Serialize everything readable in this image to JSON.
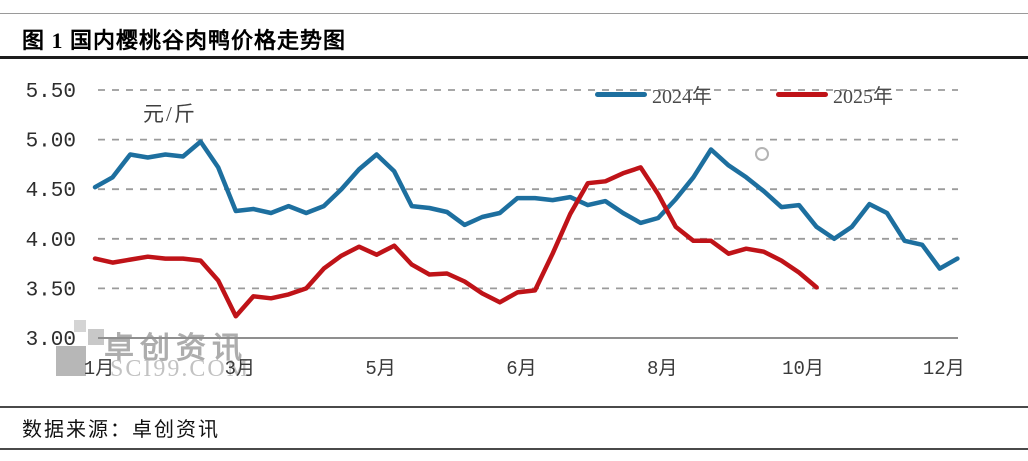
{
  "header": {
    "title": "图 1 国内樱桃谷肉鸭价格走势图"
  },
  "footer": {
    "source_label": "数据来源：卓创资讯"
  },
  "watermark": {
    "brand": "卓创资讯",
    "domain": "SCI99.COM"
  },
  "chart_data": {
    "type": "line",
    "title": "图 1 国内樱桃谷肉鸭价格走势图",
    "unit_label": "元/斤",
    "legend_position": "top-right-inside",
    "grid": true,
    "x_axis": {
      "unit": "week-of-year",
      "tick_weeks": [
        1,
        9,
        17,
        25,
        33,
        41,
        49
      ],
      "tick_labels": [
        "1月",
        "3月",
        "5月",
        "6月",
        "8月",
        "10月",
        "12月"
      ],
      "range_weeks": [
        1,
        50
      ]
    },
    "y_axis": {
      "ticks": [
        "3.00",
        "3.50",
        "4.00",
        "4.50",
        "5.00",
        "5.50"
      ],
      "values": [
        3.0,
        3.5,
        4.0,
        4.5,
        5.0,
        5.5
      ],
      "range": [
        3.0,
        5.5
      ],
      "baseline": 3.0
    },
    "style": {
      "grid_color": "#9b9b9b",
      "axis_color": "#8f8f8f",
      "tick_text_color": "#2d2d2d",
      "line_width": 4.5
    },
    "series": [
      {
        "name": "2024年",
        "color": "#1d6f9f",
        "start_week": 1,
        "values": [
          4.52,
          4.62,
          4.85,
          4.82,
          4.85,
          4.83,
          4.98,
          4.72,
          4.28,
          4.3,
          4.26,
          4.33,
          4.26,
          4.33,
          4.5,
          4.7,
          4.85,
          4.68,
          4.33,
          4.31,
          4.27,
          4.14,
          4.22,
          4.26,
          4.41,
          4.41,
          4.39,
          4.42,
          4.34,
          4.38,
          4.26,
          4.16,
          4.21,
          4.4,
          4.62,
          4.9,
          4.74,
          4.62,
          4.48,
          4.32,
          4.34,
          4.12,
          4.0,
          4.12,
          4.35,
          4.26,
          3.98,
          3.94,
          3.7,
          3.8
        ]
      },
      {
        "name": "2025年",
        "color": "#bf1318",
        "start_week": 1,
        "values": [
          3.8,
          3.76,
          3.79,
          3.82,
          3.8,
          3.8,
          3.78,
          3.58,
          3.22,
          3.42,
          3.4,
          3.44,
          3.5,
          3.7,
          3.83,
          3.92,
          3.84,
          3.93,
          3.74,
          3.64,
          3.65,
          3.57,
          3.45,
          3.36,
          3.46,
          3.48,
          3.85,
          4.25,
          4.56,
          4.58,
          4.66,
          4.72,
          4.45,
          4.12,
          3.98,
          3.98,
          3.85,
          3.9,
          3.87,
          3.78,
          3.66,
          3.51
        ]
      }
    ]
  }
}
